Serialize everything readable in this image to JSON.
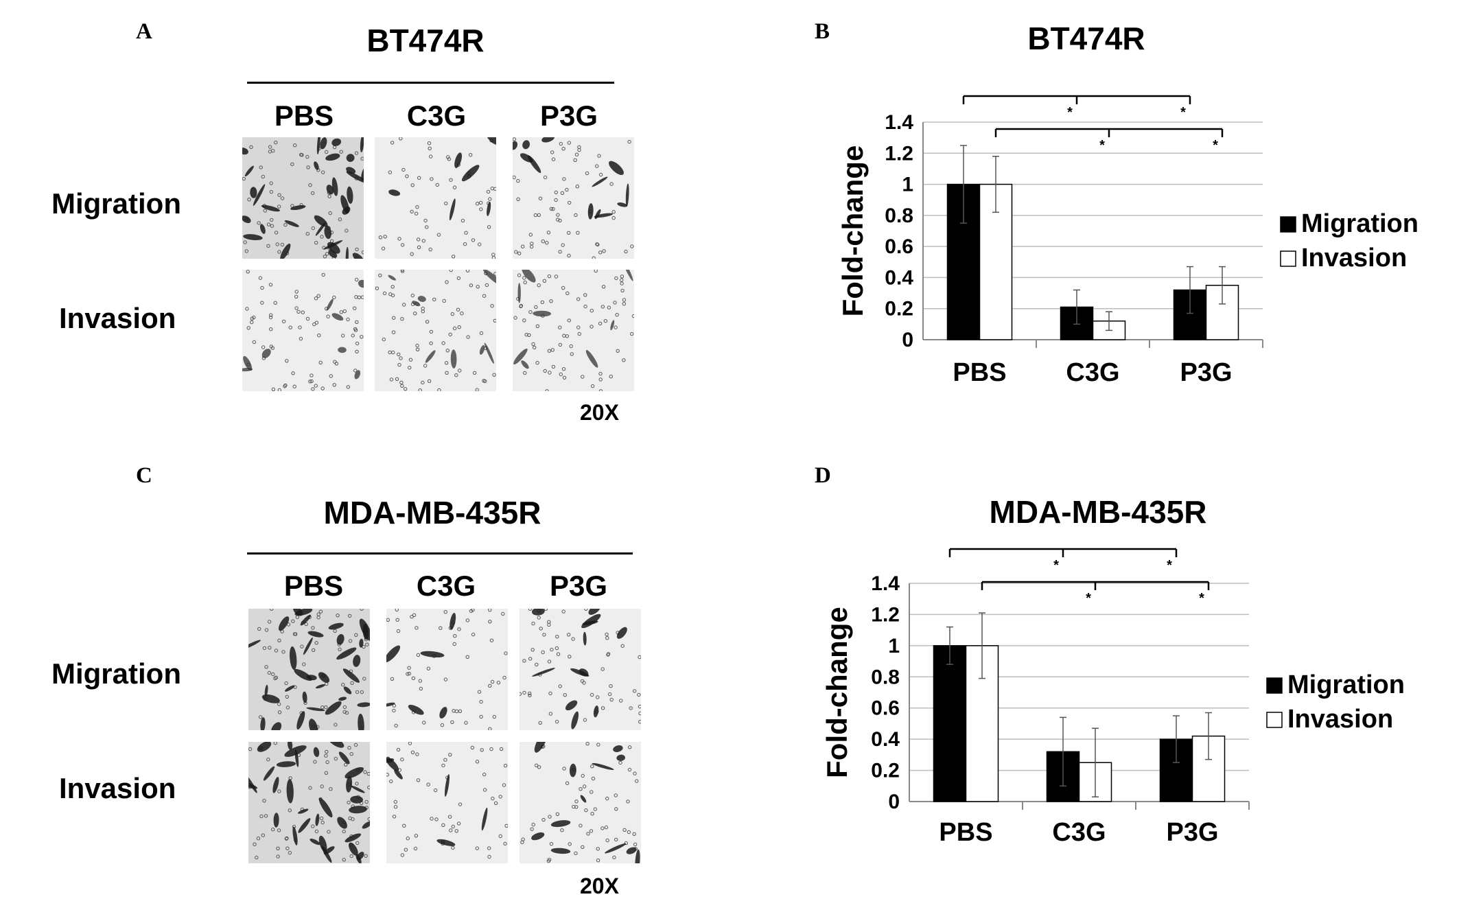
{
  "panels": {
    "A": {
      "letter": "A",
      "title": "BT474R",
      "columns": [
        "PBS",
        "C3G",
        "P3G"
      ],
      "rows": [
        "Migration",
        "Invasion"
      ],
      "magnification": "20X"
    },
    "C": {
      "letter": "C",
      "title": "MDA-MB-435R",
      "columns": [
        "PBS",
        "C3G",
        "P3G"
      ],
      "rows": [
        "Migration",
        "Invasion"
      ],
      "magnification": "20X"
    },
    "B": {
      "letter": "B"
    },
    "D": {
      "letter": "D"
    }
  },
  "micrographs": {
    "A": {
      "Migration": {
        "PBS": "dense",
        "C3G": "sparse",
        "P3G": "medium"
      },
      "Invasion": {
        "PBS": "light",
        "C3G": "light",
        "P3G": "light"
      }
    },
    "C": {
      "Migration": {
        "PBS": "dense",
        "C3G": "sparse",
        "P3G": "medium"
      },
      "Invasion": {
        "PBS": "dense",
        "C3G": "sparse",
        "P3G": "medium"
      }
    }
  },
  "colors": {
    "migration": "#000000",
    "invasion": "#ffffff",
    "grid": "#bdbdbd"
  },
  "chart_data": [
    {
      "type": "bar",
      "title": "BT474R",
      "ylabel": "Fold-change",
      "categories": [
        "PBS",
        "C3G",
        "P3G"
      ],
      "yticks": [
        "0",
        "0.2",
        "0.4",
        "0.6",
        "0.8",
        "1",
        "1.2",
        "1.4"
      ],
      "ylim": [
        0,
        1.4
      ],
      "grid": true,
      "legend": "right",
      "series": [
        {
          "name": "Migration",
          "values": [
            1.0,
            0.21,
            0.32
          ],
          "errors": [
            0.25,
            0.11,
            0.15
          ]
        },
        {
          "name": "Invasion",
          "values": [
            1.0,
            0.12,
            0.35
          ],
          "errors": [
            0.18,
            0.06,
            0.12
          ]
        }
      ],
      "significance": [
        {
          "series": "Migration",
          "from": "PBS",
          "to": [
            "C3G",
            "P3G"
          ],
          "marks": [
            "*",
            "*"
          ]
        },
        {
          "series": "Invasion",
          "from": "PBS",
          "to": [
            "C3G",
            "P3G"
          ],
          "marks": [
            "*",
            "*"
          ]
        }
      ]
    },
    {
      "type": "bar",
      "title": "MDA-MB-435R",
      "ylabel": "Fold-change",
      "categories": [
        "PBS",
        "C3G",
        "P3G"
      ],
      "yticks": [
        "0",
        "0.2",
        "0.4",
        "0.6",
        "0.8",
        "1",
        "1.2",
        "1.4"
      ],
      "ylim": [
        0,
        1.4
      ],
      "grid": true,
      "legend": "right",
      "series": [
        {
          "name": "Migration",
          "values": [
            1.0,
            0.32,
            0.4
          ],
          "errors": [
            0.12,
            0.22,
            0.15
          ]
        },
        {
          "name": "Invasion",
          "values": [
            1.0,
            0.25,
            0.42
          ],
          "errors": [
            0.21,
            0.22,
            0.15
          ]
        }
      ],
      "significance": [
        {
          "series": "Migration",
          "from": "PBS",
          "to": [
            "C3G",
            "P3G"
          ],
          "marks": [
            "*",
            "*"
          ]
        },
        {
          "series": "Invasion",
          "from": "PBS",
          "to": [
            "C3G",
            "P3G"
          ],
          "marks": [
            "*",
            "*"
          ]
        }
      ]
    }
  ]
}
